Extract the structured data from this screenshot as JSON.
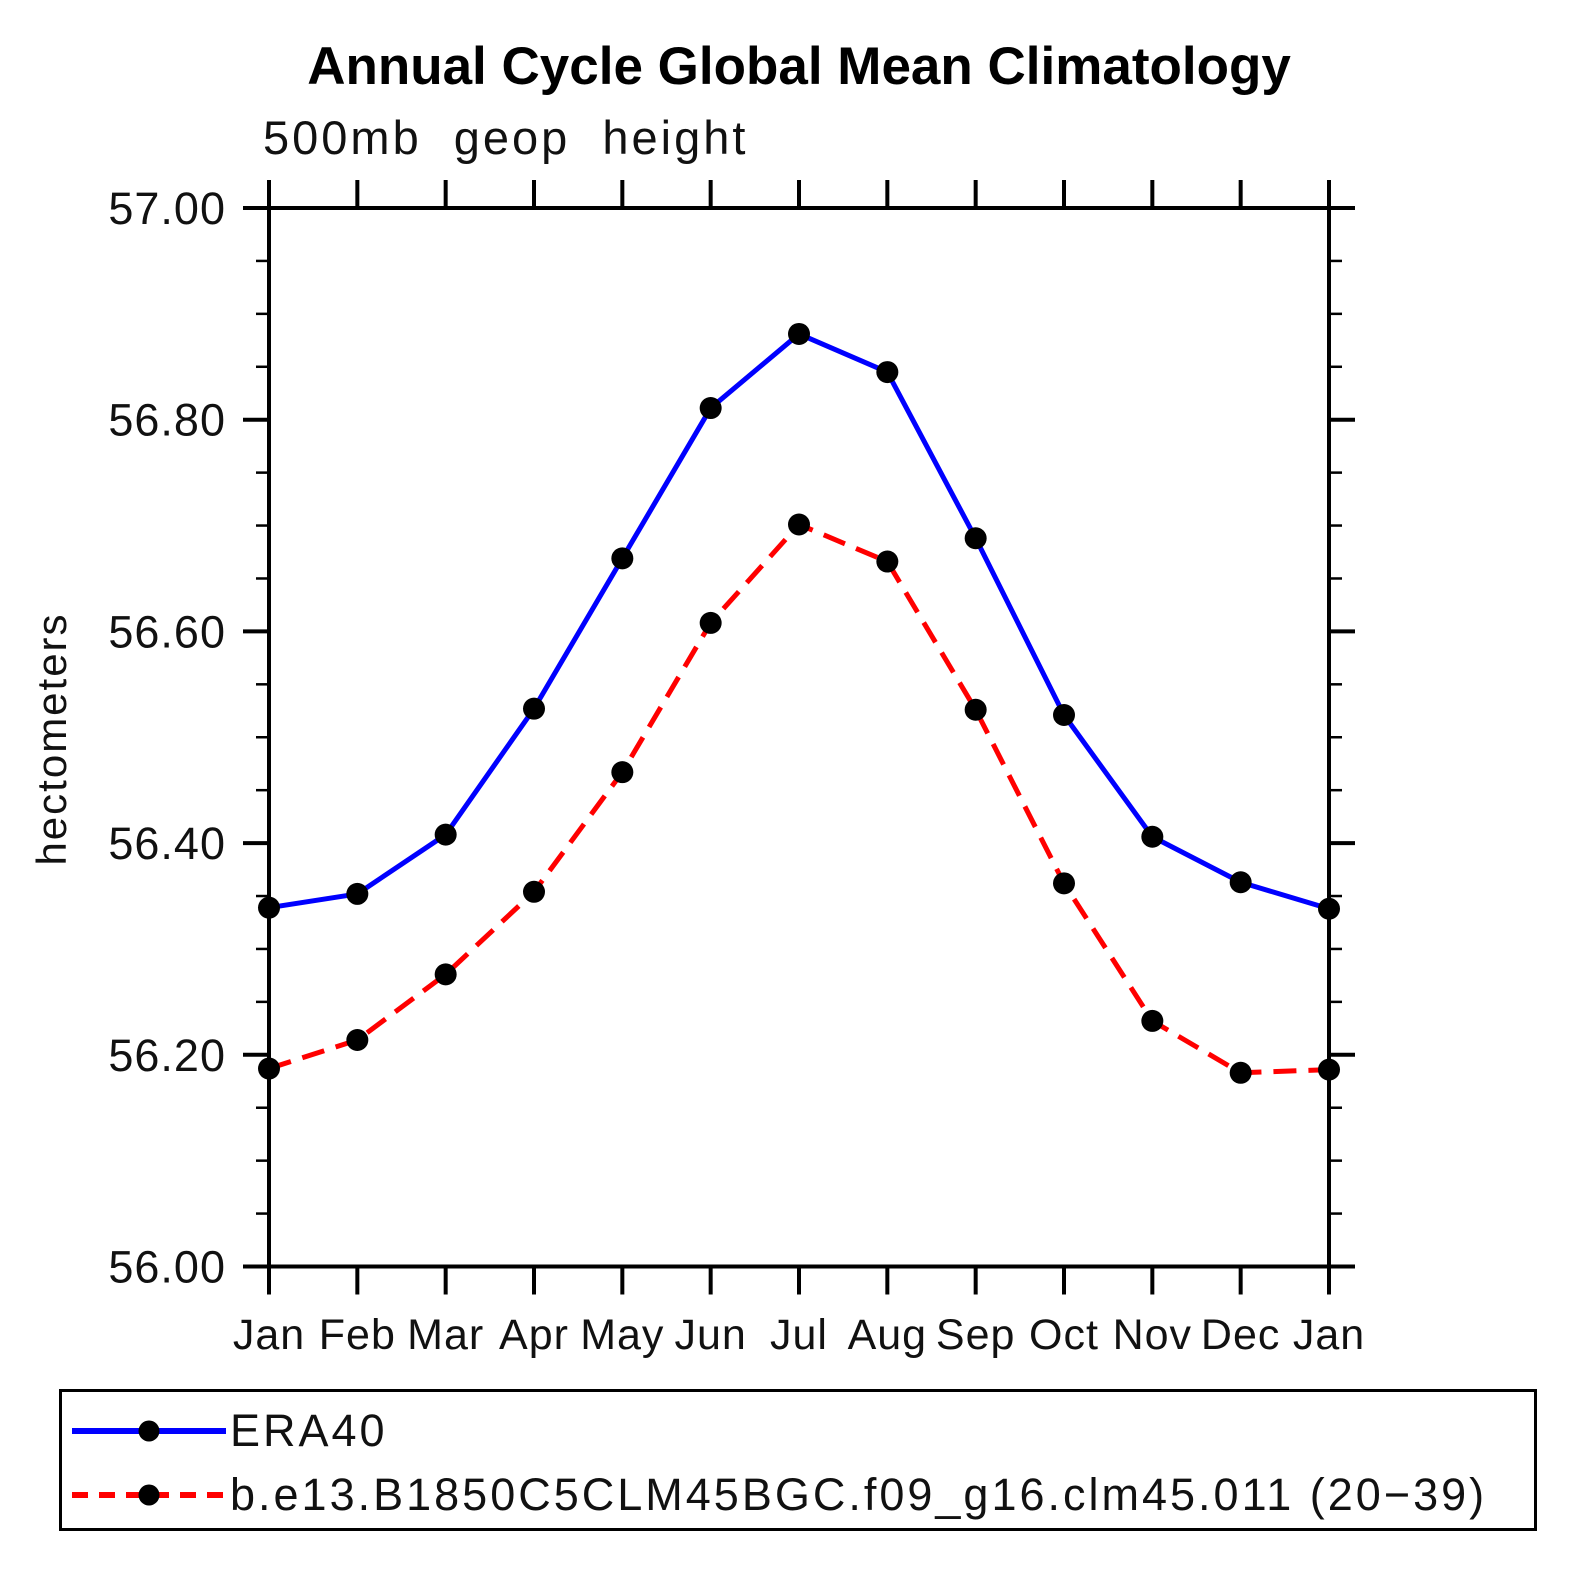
{
  "chart_data": {
    "type": "line",
    "title": "Annual Cycle Global Mean Climatology",
    "subtitle": "500mb geop height",
    "ylabel": "hectometers",
    "xlabel": "",
    "categories": [
      "Jan",
      "Feb",
      "Mar",
      "Apr",
      "May",
      "Jun",
      "Jul",
      "Aug",
      "Sep",
      "Oct",
      "Nov",
      "Dec",
      "Jan"
    ],
    "series": [
      {
        "name": "ERA40",
        "color": "#0000ff",
        "line_style": "solid",
        "marker": "circle",
        "marker_color": "#000000",
        "values": [
          56.339,
          56.352,
          56.408,
          56.527,
          56.669,
          56.811,
          56.881,
          56.845,
          56.688,
          56.521,
          56.406,
          56.363,
          56.338
        ]
      },
      {
        "name": "b.e13.B1850C5CLM45BGC.f09_g16.clm45.011 (20−39)",
        "color": "#ff0000",
        "line_style": "dashed",
        "marker": "circle",
        "marker_color": "#000000",
        "values": [
          56.187,
          56.214,
          56.276,
          56.354,
          56.467,
          56.608,
          56.701,
          56.666,
          56.526,
          56.362,
          56.232,
          56.183,
          56.186
        ]
      }
    ],
    "ylim": [
      56.0,
      57.0
    ],
    "ytick_major": [
      57.0,
      56.8,
      56.6,
      56.4,
      56.2,
      56.0
    ],
    "ytick_minor_step": 0.05,
    "ytick_label_format": "2dp",
    "axis_color": "#000000",
    "grid": false,
    "legend_position": "bottom"
  }
}
